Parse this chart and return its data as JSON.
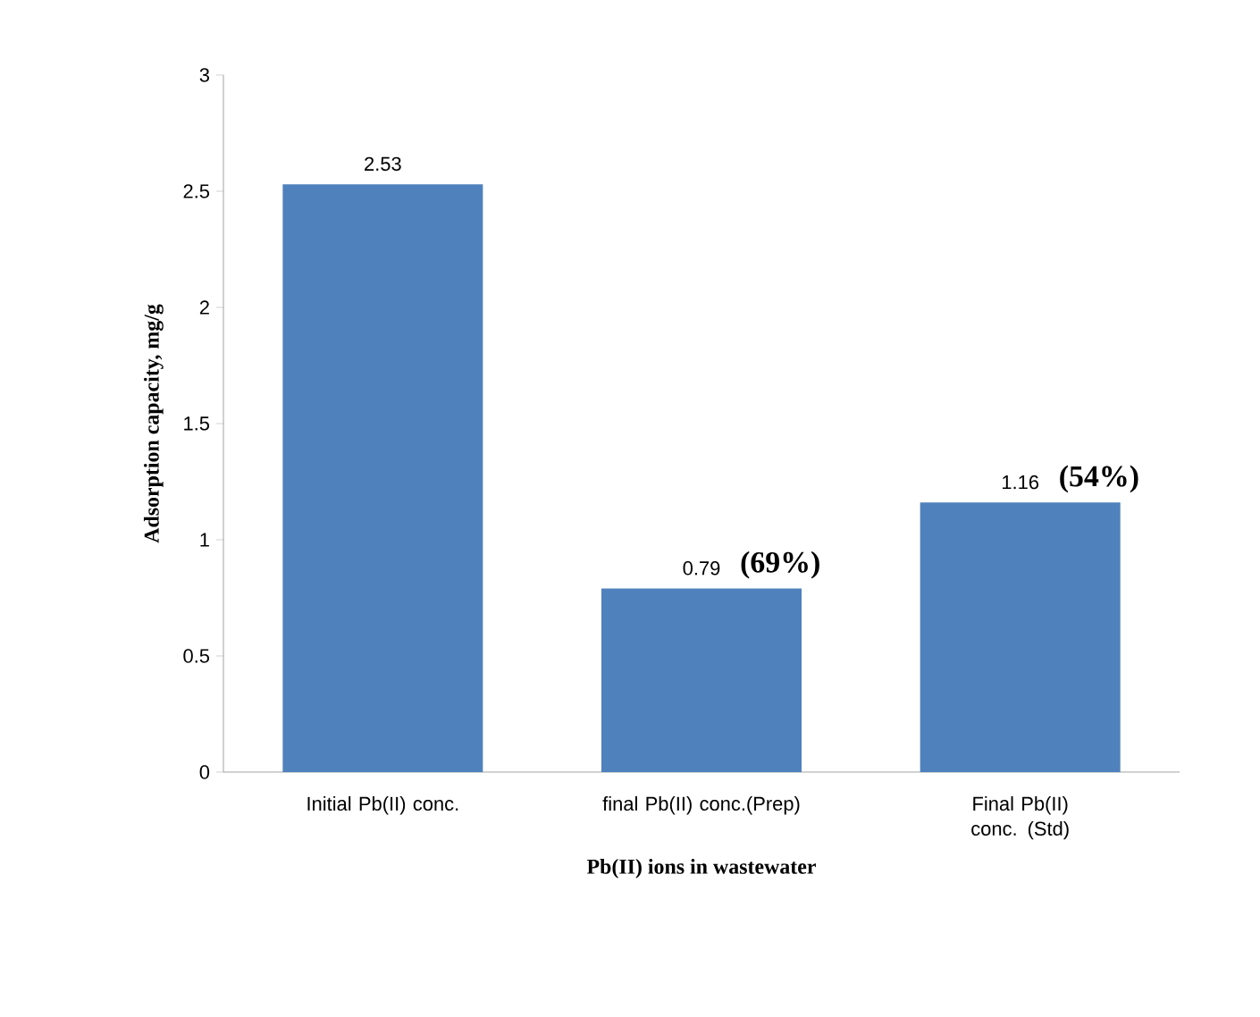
{
  "chart_data": {
    "type": "bar",
    "xlabel": "Pb(II)  ions in wastewater",
    "ylabel": "Adsorption  capacity,  mg/g",
    "categories": [
      "Initial Pb(II) conc.",
      "final Pb(II) conc.(Prep)",
      "Final Pb(II) conc. (Std)"
    ],
    "values": [
      2.53,
      0.79,
      1.16
    ],
    "color": "#4f81bd",
    "ylim": [
      0,
      3
    ],
    "yticks": [
      0,
      0.5,
      1,
      1.5,
      2,
      2.5,
      3
    ],
    "data_labels": true,
    "annotations": [
      {
        "text": "(69%)",
        "x": "final Pb(II) conc.(Prep)",
        "y": 0.79
      },
      {
        "text": "(54%)",
        "x": "Final Pb(II) conc. (Std)",
        "y": 1.16
      }
    ]
  }
}
